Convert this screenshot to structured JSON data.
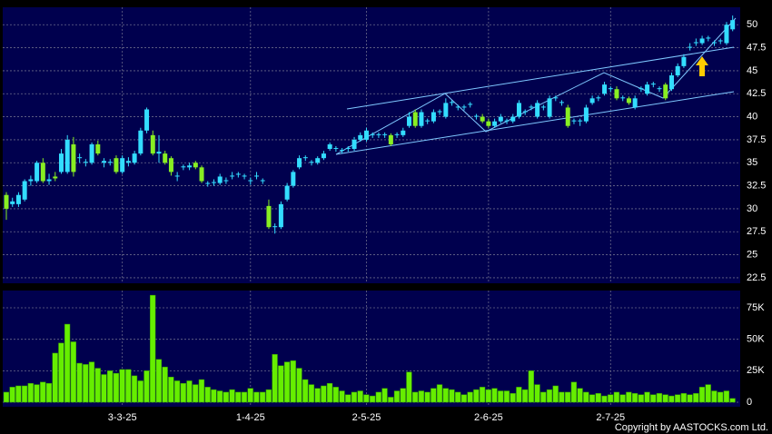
{
  "chart_data": [
    {
      "type": "candlestick",
      "up_color": "#33ddff",
      "down_color": "#88ee22",
      "open": [
        31.5,
        30.5,
        30.5,
        31,
        33,
        33,
        35,
        33,
        33.5,
        34,
        34,
        37,
        35.5,
        35,
        35,
        37,
        35,
        35,
        35.5,
        34,
        35,
        35,
        36,
        38.5,
        38,
        36,
        36,
        35.5,
        33.5,
        34.5,
        34.5,
        35,
        34.5,
        32.7,
        32.8,
        32.8,
        33,
        33.5,
        33.7,
        33.5,
        33,
        33.5,
        33,
        30.3,
        28,
        28,
        31,
        32.5,
        34.5,
        35.5,
        35,
        35,
        35.5,
        36.5,
        36.5,
        36.3,
        36.5,
        36.5,
        37.5,
        37.5,
        38,
        38,
        38,
        38,
        38,
        38,
        39,
        40.5,
        39,
        39.5,
        39.5,
        40.5,
        40,
        41.5,
        41,
        41,
        41.3,
        40,
        40,
        39.5,
        39,
        39.5,
        39.5,
        39.5,
        40,
        40.5,
        41,
        40,
        41,
        40,
        42,
        41.5,
        41,
        39.5,
        39.5,
        39.5,
        41.5,
        42,
        42.5,
        43,
        43,
        42,
        42,
        41,
        43,
        42.5,
        43.5,
        43,
        43.5,
        43,
        44.5,
        45.5,
        47.5,
        48,
        48,
        48.5,
        48,
        48.2,
        48,
        49.5
      ],
      "high": [
        31.8,
        31.2,
        31.8,
        33.2,
        33.6,
        35.2,
        35.5,
        33.8,
        34,
        36.5,
        38,
        37.8,
        36,
        35.4,
        37.2,
        37.4,
        35.5,
        35.4,
        35.8,
        35.8,
        35.6,
        36.3,
        38.8,
        41,
        38.5,
        38,
        36.3,
        35.7,
        34,
        34.8,
        35,
        35.2,
        34.7,
        33,
        33.2,
        33.8,
        33.4,
        34,
        34,
        33.8,
        33.4,
        34,
        33.3,
        31,
        28.4,
        30.8,
        32.8,
        34.2,
        35.8,
        35.8,
        35.3,
        35.7,
        36.3,
        37.2,
        36.8,
        36.6,
        36.8,
        37.8,
        38.3,
        38.8,
        38.3,
        38.3,
        38.3,
        38.2,
        38.3,
        38.8,
        40.5,
        40.8,
        40.8,
        39.8,
        40.8,
        40.8,
        42,
        41.8,
        41.3,
        41.3,
        41.6,
        40.3,
        40.3,
        39.8,
        39.8,
        40.3,
        39.8,
        40.3,
        41.8,
        40.8,
        41.3,
        41.8,
        41.3,
        42.3,
        42.3,
        41.8,
        41.3,
        39.8,
        39.8,
        41.3,
        42.3,
        42.3,
        43.8,
        43.3,
        43.3,
        42.3,
        42.2,
        42.3,
        43.3,
        43.8,
        43.8,
        43.3,
        43.7,
        44.8,
        45.8,
        46.8,
        48,
        48.5,
        48.8,
        48.8,
        48.3,
        48.5,
        50.3,
        51
      ],
      "low": [
        28.8,
        30.2,
        30.2,
        30.8,
        32.5,
        32.8,
        32.8,
        32.6,
        33,
        33.8,
        33.8,
        33.5,
        35,
        34.6,
        34.8,
        35.8,
        34.5,
        34.7,
        33.8,
        33.8,
        34.6,
        34.8,
        35.8,
        38.2,
        35.8,
        35,
        34.8,
        33.6,
        33,
        34.2,
        34.2,
        34.3,
        32.8,
        32.4,
        32.5,
        32.6,
        32.7,
        33.2,
        33.4,
        33.2,
        32.6,
        33.2,
        32.7,
        27.8,
        27.3,
        27.8,
        30.8,
        32.3,
        34.3,
        35.2,
        34.7,
        34.8,
        35.3,
        36.3,
        36.2,
        36,
        36.2,
        36.3,
        37.3,
        37.3,
        37.7,
        37.7,
        37.7,
        36.8,
        37.7,
        37.8,
        38.8,
        38.8,
        38.8,
        39.2,
        39.3,
        40.2,
        39.8,
        41.2,
        40.7,
        40.7,
        41,
        39.7,
        39.3,
        38.8,
        38.8,
        39.3,
        39.2,
        39.3,
        39.8,
        40.2,
        40.7,
        39.8,
        40.7,
        39.8,
        41.7,
        41.2,
        38.8,
        39.2,
        39,
        39.3,
        41.3,
        41.7,
        42.3,
        42.7,
        41.8,
        41.7,
        41.3,
        40.8,
        42.7,
        42.3,
        43.2,
        42.7,
        41.8,
        42.8,
        44.3,
        45.3,
        47.2,
        47.7,
        47.8,
        48.2,
        47.7,
        47.9,
        47.8,
        49.3
      ],
      "close": [
        30,
        30.8,
        31.5,
        33,
        33.2,
        35,
        33,
        33.2,
        33.3,
        36,
        37.5,
        34,
        35.6,
        35.1,
        37,
        36,
        35.2,
        35.1,
        34,
        35.5,
        35.2,
        36,
        38.5,
        40.8,
        36,
        36.2,
        35,
        34,
        33.6,
        34.6,
        34.7,
        34.5,
        33,
        32.8,
        32.9,
        33.5,
        33.1,
        33.6,
        33.8,
        33.6,
        33.1,
        33.6,
        33.1,
        28,
        28.1,
        30.5,
        32.5,
        34,
        35.5,
        35.6,
        35.1,
        35.5,
        36,
        37,
        36.6,
        36.4,
        36.6,
        37.5,
        38,
        38.5,
        38.1,
        38.1,
        38.1,
        37,
        38.1,
        38.5,
        40,
        39,
        40.5,
        39.6,
        40.5,
        40.6,
        41.5,
        41.6,
        41.1,
        41.1,
        41.4,
        40.1,
        39.5,
        39,
        39.5,
        40,
        39.6,
        40,
        41.5,
        40.6,
        41.1,
        41.5,
        41.1,
        42,
        42.1,
        41.6,
        39,
        39.6,
        39.6,
        41,
        42,
        42.1,
        43.5,
        43.1,
        42,
        42.1,
        41.5,
        42,
        43.1,
        43.5,
        43.6,
        43.1,
        42,
        44.5,
        45.5,
        46.5,
        47.6,
        48.1,
        48.5,
        48.6,
        48.1,
        48.3,
        50,
        50.5
      ],
      "ylim": [
        21.9,
        51.9
      ],
      "yticks": [
        22.5,
        25,
        27.5,
        30,
        32.5,
        35,
        37.5,
        40,
        42.5,
        45,
        47.5,
        50
      ],
      "grid": true
    },
    {
      "type": "bar",
      "color": "#66ee00",
      "categories": [
        null,
        null,
        null,
        null,
        null,
        null,
        null,
        null,
        null,
        null,
        null,
        null,
        null,
        null,
        null,
        null,
        null,
        null,
        null,
        "3-3-25",
        null,
        null,
        null,
        null,
        null,
        null,
        null,
        null,
        null,
        null,
        null,
        null,
        null,
        null,
        null,
        null,
        null,
        null,
        null,
        null,
        "1-4-25",
        null,
        null,
        null,
        null,
        null,
        null,
        null,
        null,
        null,
        null,
        null,
        null,
        null,
        null,
        null,
        null,
        null,
        null,
        "2-5-25",
        null,
        null,
        null,
        null,
        null,
        null,
        null,
        null,
        null,
        null,
        null,
        null,
        null,
        null,
        null,
        null,
        null,
        null,
        null,
        "2-6-25",
        null,
        null,
        null,
        null,
        null,
        null,
        null,
        null,
        null,
        null,
        null,
        null,
        null,
        null,
        null,
        null,
        null,
        null,
        null,
        "2-7-25",
        null,
        null,
        null,
        null,
        null,
        null,
        null,
        null,
        null,
        null,
        null,
        null,
        null,
        null,
        null,
        null,
        null,
        null,
        null,
        null
      ],
      "values": [
        8000,
        12000,
        13000,
        13000,
        15000,
        14000,
        16000,
        15000,
        39000,
        47000,
        62000,
        48000,
        31000,
        30000,
        32000,
        27000,
        22000,
        25000,
        23000,
        26000,
        26000,
        21000,
        17000,
        25000,
        85000,
        34000,
        28000,
        20000,
        17000,
        15000,
        17000,
        14000,
        18000,
        12000,
        10000,
        9000,
        8000,
        10000,
        8000,
        8000,
        11000,
        8000,
        8000,
        10000,
        38000,
        29000,
        32000,
        33000,
        27000,
        18000,
        14000,
        11000,
        13000,
        15000,
        12000,
        9000,
        6000,
        8000,
        9000,
        6000,
        5000,
        8000,
        11000,
        4000,
        9000,
        11000,
        24000,
        8000,
        9000,
        8000,
        11000,
        14000,
        11000,
        10000,
        8000,
        6000,
        8000,
        10000,
        12000,
        10000,
        11000,
        9000,
        9000,
        7000,
        12000,
        10000,
        25000,
        14000,
        8000,
        10000,
        13000,
        8000,
        8000,
        16000,
        11000,
        8000,
        6000,
        7000,
        5000,
        6000,
        8000,
        6000,
        8000,
        7000,
        6000,
        8000,
        6000,
        7000,
        6000,
        5000,
        6000,
        7000,
        6000,
        7000,
        12000,
        14000,
        9000,
        8000,
        9000,
        3000
      ],
      "ylim": [
        -3600,
        88700
      ],
      "yticks": [
        0,
        {
          "value": 25000,
          "label": "25K"
        },
        {
          "value": 50000,
          "label": "50K"
        },
        {
          "value": 75000,
          "label": "75K"
        }
      ],
      "grid": true
    }
  ],
  "copyright": "Copyright by AASTOCKS.com Ltd."
}
